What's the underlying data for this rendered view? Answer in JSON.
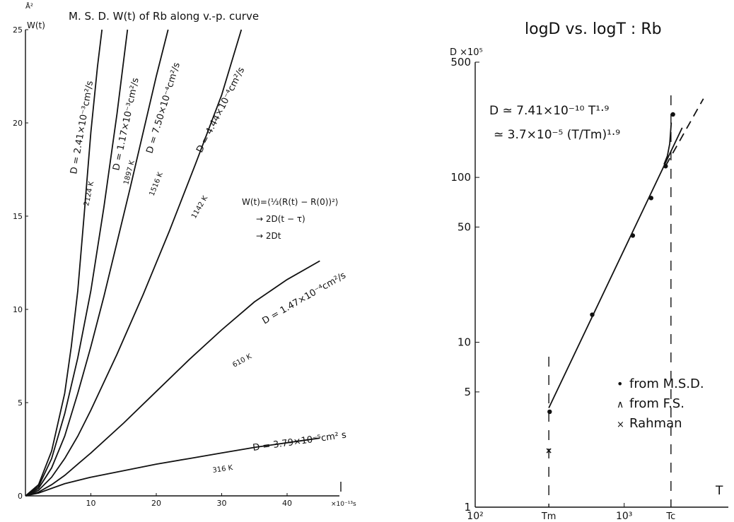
{
  "chart_data": [
    {
      "type": "line",
      "title": "M. S. D.  W(t)  of  Rb along v.-p. curve",
      "ylabel": "W(t)",
      "yunit": "Å²",
      "xunit": "×10⁻¹³s",
      "xlim": [
        0,
        48
      ],
      "ylim": [
        0,
        25
      ],
      "xticks": [
        "10",
        "20",
        "30",
        "40"
      ],
      "xtick_values": [
        10,
        20,
        30,
        40
      ],
      "yticks": [
        "0",
        "5",
        "10",
        "15",
        "20",
        "25"
      ],
      "ytick_values": [
        0,
        5,
        10,
        15,
        20,
        25
      ],
      "formula": [
        "W(t)=⟨⅓(R(t) − R(0))²⟩",
        "→ 2D(t − τ)",
        "→ 2Dt"
      ],
      "series": [
        {
          "name": "2124 K",
          "D_label": "D = 2.41×10⁻³cm²/s",
          "points": [
            [
              0,
              0
            ],
            [
              2,
              0.6
            ],
            [
              4,
              2.4
            ],
            [
              6,
              5.5
            ],
            [
              7,
              8
            ],
            [
              8,
              11
            ],
            [
              9,
              15.2
            ],
            [
              10,
              19.5
            ],
            [
              11,
              23
            ],
            [
              11.7,
              25
            ]
          ]
        },
        {
          "name": "1897 K",
          "D_label": "D = 1.17×10⁻³cm²/s",
          "points": [
            [
              0,
              0
            ],
            [
              2,
              0.5
            ],
            [
              4,
              2.0
            ],
            [
              6,
              4.4
            ],
            [
              8,
              7.4
            ],
            [
              10,
              11
            ],
            [
              12,
              15.5
            ],
            [
              14,
              20.5
            ],
            [
              15.6,
              25
            ]
          ]
        },
        {
          "name": "1516 K",
          "D_label": "D = 7.50×10⁻⁴cm²/s",
          "points": [
            [
              0,
              0
            ],
            [
              2,
              0.4
            ],
            [
              4,
              1.5
            ],
            [
              6,
              3.2
            ],
            [
              8,
              5.5
            ],
            [
              10,
              8
            ],
            [
              12,
              10.7
            ],
            [
              14,
              13.6
            ],
            [
              16,
              16.5
            ],
            [
              18,
              19.5
            ],
            [
              20,
              22.5
            ],
            [
              21.8,
              25
            ]
          ]
        },
        {
          "name": "1142 K",
          "D_label": "D = 4.44×10⁻⁴cm²/s",
          "points": [
            [
              0,
              0
            ],
            [
              2,
              0.3
            ],
            [
              4,
              1.0
            ],
            [
              6,
              2.0
            ],
            [
              8,
              3.2
            ],
            [
              10,
              4.6
            ],
            [
              14,
              7.6
            ],
            [
              18,
              10.8
            ],
            [
              22,
              14.2
            ],
            [
              26,
              17.8
            ],
            [
              30,
              21.5
            ],
            [
              33,
              25
            ]
          ]
        },
        {
          "name": "610 K",
          "D_label": "D = 1.47×10⁻⁴cm²/s",
          "points": [
            [
              0,
              0
            ],
            [
              2,
              0.2
            ],
            [
              4,
              0.6
            ],
            [
              6,
              1.1
            ],
            [
              8,
              1.7
            ],
            [
              10,
              2.3
            ],
            [
              15,
              3.9
            ],
            [
              20,
              5.6
            ],
            [
              25,
              7.3
            ],
            [
              30,
              8.9
            ],
            [
              35,
              10.4
            ],
            [
              40,
              11.6
            ],
            [
              45,
              12.6
            ]
          ]
        },
        {
          "name": "316 K",
          "D_label": "D = 3.79×10⁻⁵cm² s",
          "points": [
            [
              0,
              0
            ],
            [
              2,
              0.15
            ],
            [
              4,
              0.4
            ],
            [
              6,
              0.65
            ],
            [
              10,
              1.0
            ],
            [
              15,
              1.35
            ],
            [
              20,
              1.7
            ],
            [
              25,
              2.0
            ],
            [
              30,
              2.3
            ],
            [
              35,
              2.6
            ],
            [
              40,
              2.85
            ],
            [
              45,
              3.1
            ]
          ]
        }
      ]
    },
    {
      "type": "scatter",
      "title": "logD  vs.  logT : Rb",
      "ylabel": "D ×10⁵",
      "xlabel": "T",
      "xscale": "log",
      "yscale": "log",
      "xlim": [
        100,
        5000
      ],
      "ylim": [
        1,
        500
      ],
      "xticks": [
        "10²",
        "10³"
      ],
      "yticks": [
        "1",
        "5",
        "10",
        "50",
        "100",
        "500"
      ],
      "ytick_values": [
        1,
        5,
        10,
        50,
        100,
        500
      ],
      "x_markers": [
        {
          "label": "Tm",
          "value": 312
        },
        {
          "label": "Tc",
          "value": 2060
        }
      ],
      "equation": [
        "D ≃ 7.41×10⁻¹⁰ T¹·⁹",
        "≃ 3.7×10⁻⁵ (T/Tm)¹·⁹"
      ],
      "fit_line": {
        "x": [
          312,
          2450
        ],
        "y": [
          4.0,
          200
        ]
      },
      "dashed_extension": {
        "x": [
          1900,
          3400
        ],
        "y": [
          118,
          300
        ]
      },
      "near_critical_curve": {
        "x": [
          1850,
          1950,
          2020,
          2070
        ],
        "y": [
          120,
          135,
          160,
          215
        ]
      },
      "msd_points": {
        "x": [
          316,
          610,
          1142,
          1516,
          1897,
          2124
        ],
        "y": [
          3.79,
          14.7,
          44.4,
          75.0,
          117,
          241
        ]
      },
      "fs_points": {
        "x": [],
        "y": []
      },
      "rahman_points": {
        "x": [
          312
        ],
        "y": [
          2.2
        ]
      },
      "legend_position": "bottom-right",
      "legend": [
        "from M.S.D.",
        "from F.S.",
        "Rahman"
      ],
      "legend_markers": [
        "•",
        "∧",
        "×"
      ]
    }
  ]
}
